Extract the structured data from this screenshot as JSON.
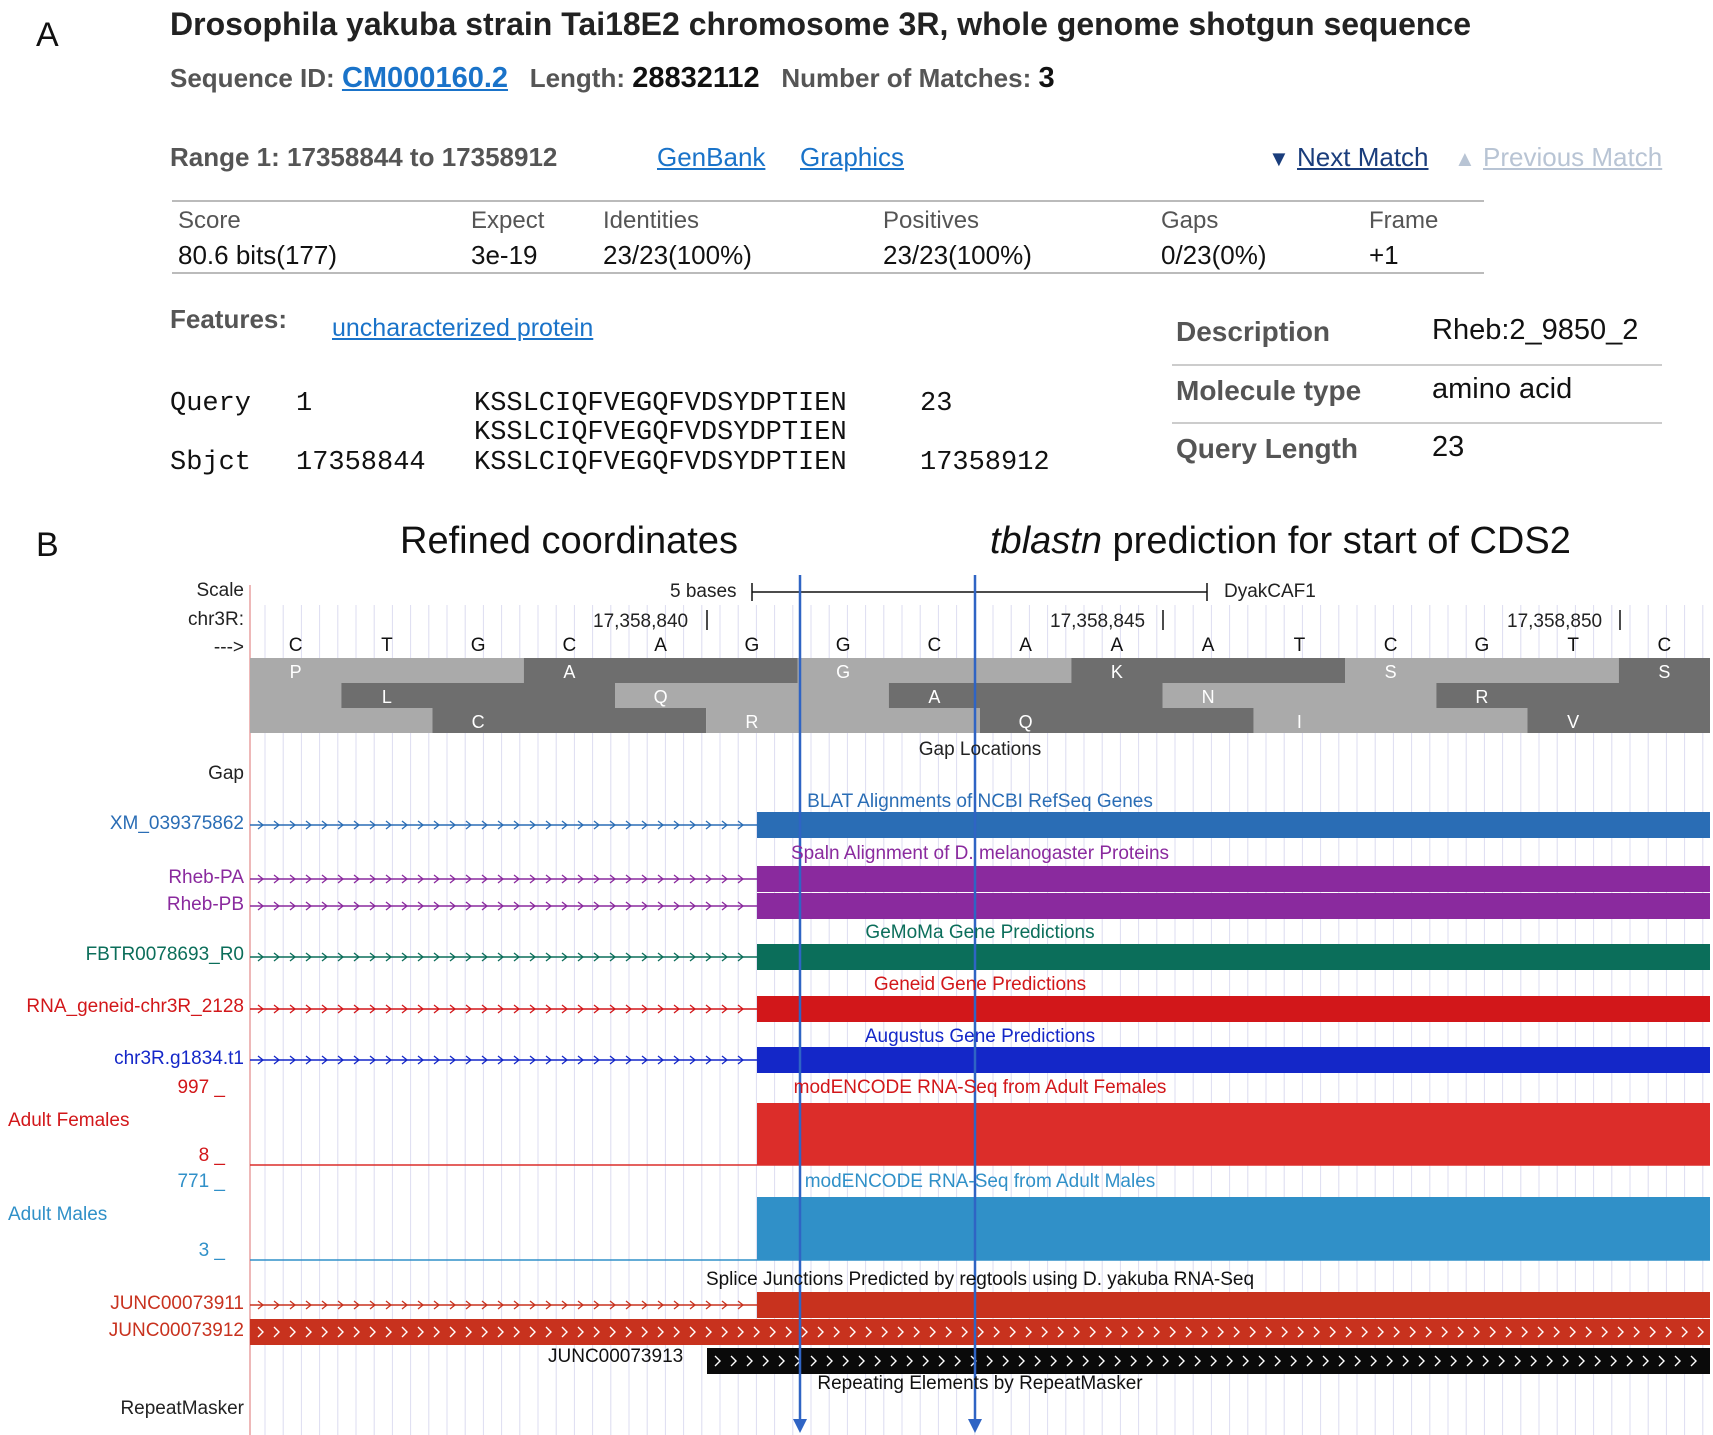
{
  "panelA": {
    "letter": "A",
    "title": "Drosophila yakuba strain Tai18E2 chromosome 3R, whole genome shotgun sequence",
    "seq_id_label": "Sequence ID:",
    "seq_id": "CM000160.2",
    "length_label": "Length:",
    "length": "28832112",
    "matches_label": "Number of Matches:",
    "matches": "3",
    "range": "Range 1: 17358844 to 17358912",
    "genbank": "GenBank",
    "graphics": "Graphics",
    "next_arrow": "▼",
    "next": "Next Match",
    "prev_arrow": "▲",
    "prev": "Previous Match",
    "stats": {
      "headers": [
        "Score",
        "Expect",
        "Identities",
        "Positives",
        "Gaps",
        "Frame"
      ],
      "values": [
        "80.6 bits(177)",
        "3e-19",
        "23/23(100%)",
        "23/23(100%)",
        "0/23(0%)",
        "+1"
      ]
    },
    "features_label": "Features:",
    "feature_link": "uncharacterized protein",
    "alignment": {
      "query_label": "Query",
      "query_start": "1",
      "query_seq": "KSSLCIQFVEGQFVDSYDPTIEN",
      "query_end": "23",
      "mid_seq": "KSSLCIQFVEGQFVDSYDPTIEN",
      "sbjct_label": "Sbjct",
      "sbjct_start": "17358844",
      "sbjct_seq": "KSSLCIQFVEGQFVDSYDPTIEN",
      "sbjct_end": "17358912"
    },
    "description": [
      {
        "key": "Description",
        "value": "Rheb:2_9850_2"
      },
      {
        "key": "Molecule type",
        "value": "amino acid"
      },
      {
        "key": "Query Length",
        "value": "23"
      }
    ]
  },
  "panelB": {
    "letter": "B",
    "label_refined": "Refined coordinates",
    "label_tblastn_italic": "tblastn",
    "label_tblastn_rest": "prediction for start of CDS2",
    "scale_label": "Scale",
    "chr_label": "chr3R:",
    "arrow_label": "--->",
    "scale_bar_text": "5 bases",
    "assembly": "DyakCAF1",
    "coords": [
      "17,358,840",
      "17,358,845",
      "17,358,850"
    ],
    "bases": [
      "C",
      "T",
      "G",
      "C",
      "A",
      "G",
      "G",
      "C",
      "A",
      "A",
      "A",
      "T",
      "C",
      "G",
      "T",
      "C"
    ],
    "frame1": [
      "P",
      "",
      "A",
      "",
      "G",
      "",
      "K",
      "",
      "S",
      "",
      "S"
    ],
    "frame2": [
      "L",
      "Q",
      "A",
      "N",
      "R"
    ],
    "frame3": [
      "C",
      "R",
      "Q",
      "I",
      "V"
    ],
    "gap_title": "Gap Locations",
    "gap_label": "Gap",
    "tracks": {
      "refseq_title": "BLAT Alignments of NCBI RefSeq Genes",
      "refseq_item": "XM_039375862",
      "spaln_title": "Spaln Alignment of D. melanogaster Proteins",
      "spaln_items": [
        "Rheb-PA",
        "Rheb-PB"
      ],
      "gemoma_title": "GeMoMa Gene Predictions",
      "gemoma_item": "FBTR0078693_R0",
      "geneid_title": "Geneid Gene Predictions",
      "geneid_item": "RNA_geneid-chr3R_2128",
      "augustus_title": "Augustus Gene Predictions",
      "augustus_item": "chr3R.g1834.t1",
      "females_title": "modENCODE RNA-Seq from Adult Females",
      "females_label": "Adult Females",
      "females_max": "997 _",
      "females_min": "8 _",
      "males_title": "modENCODE RNA-Seq from Adult Males",
      "males_label": "Adult Males",
      "males_max": "771 _",
      "males_min": "3 _",
      "junc_title": "Splice Junctions Predicted by regtools using D. yakuba RNA-Seq",
      "junc_items": [
        "JUNC00073911",
        "JUNC00073912",
        "JUNC00073913"
      ],
      "repeat_title": "Repeating Elements by RepeatMasker",
      "repeat_label": "RepeatMasker"
    },
    "colors": {
      "refseq": "#2a6db5",
      "spaln": "#8a2a9e",
      "gemoma": "#0b6e5a",
      "geneid": "#d2171a",
      "augustus": "#1427c8",
      "females": "#dc2d2a",
      "males": "#3090c8",
      "junc": "#c8321e",
      "marker": "#2f64c4"
    }
  }
}
